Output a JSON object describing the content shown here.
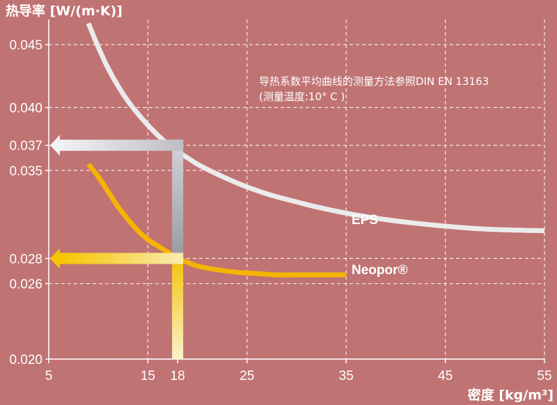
{
  "chart_data": {
    "type": "line",
    "ylabel": "热导率 [W/(m·K)]",
    "xlabel": "密度 [kg/m³]",
    "xlim": [
      5,
      55
    ],
    "ylim": [
      0.02,
      0.047
    ],
    "x_ticks": [
      5,
      15,
      18,
      25,
      35,
      45,
      55
    ],
    "x_tick_labels": [
      "5",
      "15",
      "18",
      "25",
      "35",
      "45",
      "55"
    ],
    "y_ticks": [
      0.02,
      0.026,
      0.028,
      0.035,
      0.037,
      0.04,
      0.045
    ],
    "y_tick_labels": [
      "0.020",
      "0.026",
      "0.028",
      "0.035",
      "0.037",
      "0.040",
      "0.045"
    ],
    "grid": true,
    "annotation": {
      "line1": "导热系数平均曲线的测量方法参照DIN EN 13163",
      "line2": "(测量温度:10° C )"
    },
    "series": [
      {
        "name": "EPS",
        "color": "#ebebeb",
        "x": [
          9,
          10,
          11,
          12,
          13,
          14,
          15,
          16,
          17,
          18,
          19,
          20,
          22,
          24,
          26,
          28,
          30,
          32,
          35,
          38,
          42,
          46,
          50,
          55
        ],
        "y": [
          0.0467,
          0.0448,
          0.0431,
          0.0417,
          0.0405,
          0.0395,
          0.0386,
          0.0378,
          0.0371,
          0.0365,
          0.036,
          0.0355,
          0.0347,
          0.034,
          0.0334,
          0.0329,
          0.0325,
          0.0321,
          0.0316,
          0.0312,
          0.0308,
          0.0305,
          0.0303,
          0.0302
        ]
      },
      {
        "name": "Neopor®",
        "color": "#f5b400",
        "x": [
          9,
          10,
          11,
          12,
          13,
          14,
          15,
          16,
          17,
          18,
          19,
          20,
          22,
          24,
          26,
          28,
          30,
          32,
          35
        ],
        "y": [
          0.0355,
          0.0345,
          0.0333,
          0.0321,
          0.0311,
          0.0302,
          0.0295,
          0.029,
          0.0285,
          0.028,
          0.0277,
          0.0274,
          0.0271,
          0.0269,
          0.0268,
          0.0267,
          0.0267,
          0.0267,
          0.0267
        ]
      }
    ],
    "reference": {
      "density": 18,
      "values": [
        0.037,
        0.028
      ]
    }
  }
}
